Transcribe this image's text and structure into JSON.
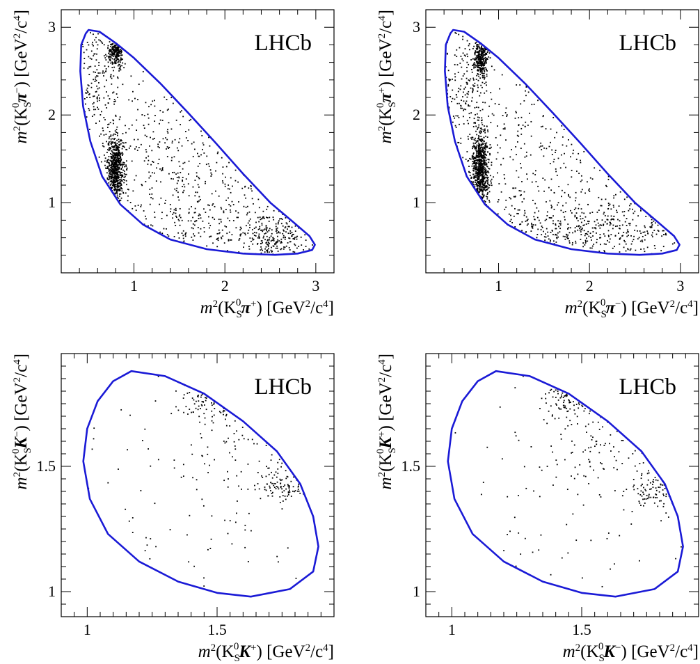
{
  "figure": {
    "boundary_color": "#1a1ad6",
    "point_color": "#000000",
    "frame_color": "#000000"
  },
  "chart_data": [
    {
      "type": "scatter",
      "id": "kpi_pp",
      "watermark": "LHCb",
      "xlabel": {
        "base": "m",
        "sup": "2",
        "open": "(K",
        "sub": "S",
        "sup0": "0",
        "particle": "π",
        "charge": "+",
        "close": ")",
        "unit": "[GeV",
        "unit_sup": "2",
        "unit_mid": "/c",
        "unit_sup2": "4",
        "unit_end": "]"
      },
      "ylabel": {
        "base": "m",
        "sup": "2",
        "open": "(K",
        "sub": "S",
        "sup0": "0",
        "particle": "π",
        "charge": "−",
        "close": ")",
        "unit": "[GeV",
        "unit_sup": "2",
        "unit_mid": "/c",
        "unit_sup2": "4",
        "unit_end": "]"
      },
      "xlim": [
        0.2,
        3.2
      ],
      "ylim": [
        0.2,
        3.2
      ],
      "xticks": [
        1,
        2,
        3
      ],
      "yticks": [
        1,
        2,
        3
      ],
      "xtick_labels": [
        "1",
        "2",
        "3"
      ],
      "ytick_labels": [
        "1",
        "2",
        "3"
      ],
      "boundary": [
        [
          0.5,
          2.97
        ],
        [
          0.62,
          2.95
        ],
        [
          0.8,
          2.82
        ],
        [
          1.0,
          2.65
        ],
        [
          1.3,
          2.35
        ],
        [
          1.6,
          2.02
        ],
        [
          1.9,
          1.68
        ],
        [
          2.2,
          1.33
        ],
        [
          2.5,
          1.0
        ],
        [
          2.75,
          0.78
        ],
        [
          2.93,
          0.62
        ],
        [
          2.99,
          0.52
        ],
        [
          2.96,
          0.46
        ],
        [
          2.8,
          0.42
        ],
        [
          2.55,
          0.405
        ],
        [
          2.2,
          0.42
        ],
        [
          1.8,
          0.47
        ],
        [
          1.4,
          0.58
        ],
        [
          1.1,
          0.75
        ],
        [
          0.85,
          0.98
        ],
        [
          0.65,
          1.3
        ],
        [
          0.52,
          1.7
        ],
        [
          0.44,
          2.1
        ],
        [
          0.41,
          2.5
        ],
        [
          0.42,
          2.8
        ],
        [
          0.47,
          2.93
        ],
        [
          0.5,
          2.97
        ]
      ],
      "clusters": [
        {
          "cx": 0.8,
          "cy": 1.4,
          "sx": 0.045,
          "sy": 0.18,
          "n": 650
        },
        {
          "cx": 0.8,
          "cy": 2.7,
          "sx": 0.04,
          "sy": 0.08,
          "n": 200
        },
        {
          "cx": 2.55,
          "cy": 0.62,
          "sx": 0.2,
          "sy": 0.14,
          "n": 220
        },
        {
          "cx": 1.8,
          "cy": 0.75,
          "sx": 0.55,
          "sy": 0.22,
          "n": 160
        },
        {
          "cx": 0.6,
          "cy": 2.4,
          "sx": 0.15,
          "sy": 0.35,
          "n": 170
        },
        {
          "cx": 1.5,
          "cy": 1.5,
          "sx": 0.6,
          "sy": 0.6,
          "n": 350
        }
      ]
    },
    {
      "type": "scatter",
      "id": "kpi_pm",
      "watermark": "LHCb",
      "xlabel": {
        "base": "m",
        "sup": "2",
        "open": "(K",
        "sub": "S",
        "sup0": "0",
        "particle": "π",
        "charge": "−",
        "close": ")",
        "unit": "[GeV",
        "unit_sup": "2",
        "unit_mid": "/c",
        "unit_sup2": "4",
        "unit_end": "]"
      },
      "ylabel": {
        "base": "m",
        "sup": "2",
        "open": "(K",
        "sub": "S",
        "sup0": "0",
        "particle": "π",
        "charge": "+",
        "close": ")",
        "unit": "[GeV",
        "unit_sup": "2",
        "unit_mid": "/c",
        "unit_sup2": "4",
        "unit_end": "]"
      },
      "xlim": [
        0.2,
        3.2
      ],
      "ylim": [
        0.2,
        3.2
      ],
      "xticks": [
        1,
        2,
        3
      ],
      "yticks": [
        1,
        2,
        3
      ],
      "xtick_labels": [
        "1",
        "2",
        "3"
      ],
      "ytick_labels": [
        "1",
        "2",
        "3"
      ],
      "boundary": [
        [
          0.5,
          2.97
        ],
        [
          0.62,
          2.95
        ],
        [
          0.8,
          2.82
        ],
        [
          1.0,
          2.65
        ],
        [
          1.3,
          2.35
        ],
        [
          1.6,
          2.02
        ],
        [
          1.9,
          1.68
        ],
        [
          2.2,
          1.33
        ],
        [
          2.5,
          1.0
        ],
        [
          2.75,
          0.78
        ],
        [
          2.93,
          0.62
        ],
        [
          2.99,
          0.52
        ],
        [
          2.96,
          0.46
        ],
        [
          2.8,
          0.42
        ],
        [
          2.55,
          0.405
        ],
        [
          2.2,
          0.42
        ],
        [
          1.8,
          0.47
        ],
        [
          1.4,
          0.58
        ],
        [
          1.1,
          0.75
        ],
        [
          0.85,
          0.98
        ],
        [
          0.65,
          1.3
        ],
        [
          0.52,
          1.7
        ],
        [
          0.44,
          2.1
        ],
        [
          0.41,
          2.5
        ],
        [
          0.42,
          2.8
        ],
        [
          0.47,
          2.93
        ],
        [
          0.5,
          2.97
        ]
      ],
      "clusters": [
        {
          "cx": 0.8,
          "cy": 1.4,
          "sx": 0.045,
          "sy": 0.22,
          "n": 700
        },
        {
          "cx": 0.8,
          "cy": 2.65,
          "sx": 0.04,
          "sy": 0.12,
          "n": 280
        },
        {
          "cx": 1.6,
          "cy": 0.65,
          "sx": 0.5,
          "sy": 0.15,
          "n": 220
        },
        {
          "cx": 2.4,
          "cy": 0.7,
          "sx": 0.35,
          "sy": 0.2,
          "n": 150
        },
        {
          "cx": 0.6,
          "cy": 2.3,
          "sx": 0.15,
          "sy": 0.4,
          "n": 180
        },
        {
          "cx": 1.5,
          "cy": 1.5,
          "sx": 0.6,
          "sy": 0.6,
          "n": 300
        }
      ]
    },
    {
      "type": "scatter",
      "id": "kk_pm",
      "watermark": "LHCb",
      "xlabel": {
        "base": "m",
        "sup": "2",
        "open": "(K",
        "sub": "S",
        "sup0": "0",
        "particle": "K",
        "charge": "+",
        "close": ")",
        "unit": "[GeV",
        "unit_sup": "2",
        "unit_mid": "/c",
        "unit_sup2": "4",
        "unit_end": "]"
      },
      "ylabel": {
        "base": "m",
        "sup": "2",
        "open": "(K",
        "sub": "S",
        "sup0": "0",
        "particle": "K",
        "charge": "−",
        "close": ")",
        "unit": "[GeV",
        "unit_sup": "2",
        "unit_mid": "/c",
        "unit_sup2": "4",
        "unit_end": "]"
      },
      "xlim": [
        0.9,
        1.95
      ],
      "ylim": [
        0.9,
        1.95
      ],
      "xticks": [
        1,
        1.5
      ],
      "yticks": [
        1,
        1.5
      ],
      "xtick_labels": [
        "1",
        "1.5"
      ],
      "ytick_labels": [
        "1",
        "1.5"
      ],
      "boundary": [
        [
          1.17,
          1.88
        ],
        [
          1.3,
          1.86
        ],
        [
          1.45,
          1.79
        ],
        [
          1.6,
          1.68
        ],
        [
          1.73,
          1.56
        ],
        [
          1.82,
          1.43
        ],
        [
          1.87,
          1.3
        ],
        [
          1.89,
          1.18
        ],
        [
          1.87,
          1.08
        ],
        [
          1.78,
          1.01
        ],
        [
          1.63,
          0.98
        ],
        [
          1.5,
          0.995
        ],
        [
          1.35,
          1.04
        ],
        [
          1.2,
          1.12
        ],
        [
          1.08,
          1.23
        ],
        [
          1.01,
          1.37
        ],
        [
          0.985,
          1.52
        ],
        [
          1.0,
          1.65
        ],
        [
          1.04,
          1.76
        ],
        [
          1.1,
          1.84
        ],
        [
          1.17,
          1.88
        ]
      ],
      "clusters": [
        {
          "cx": 1.75,
          "cy": 1.42,
          "sx": 0.05,
          "sy": 0.04,
          "n": 90
        },
        {
          "cx": 1.45,
          "cy": 1.76,
          "sx": 0.06,
          "sy": 0.04,
          "n": 60
        },
        {
          "cx": 1.6,
          "cy": 1.58,
          "sx": 0.12,
          "sy": 0.1,
          "n": 70
        },
        {
          "cx": 1.4,
          "cy": 1.4,
          "sx": 0.3,
          "sy": 0.3,
          "n": 70
        }
      ]
    },
    {
      "type": "scatter",
      "id": "kk_mp",
      "watermark": "LHCb",
      "xlabel": {
        "base": "m",
        "sup": "2",
        "open": "(K",
        "sub": "S",
        "sup0": "0",
        "particle": "K",
        "charge": "−",
        "close": ")",
        "unit": "[GeV",
        "unit_sup": "2",
        "unit_mid": "/c",
        "unit_sup2": "4",
        "unit_end": "]"
      },
      "ylabel": {
        "base": "m",
        "sup": "2",
        "open": "(K",
        "sub": "S",
        "sup0": "0",
        "particle": "K",
        "charge": "+",
        "close": ")",
        "unit": "[GeV",
        "unit_sup": "2",
        "unit_mid": "/c",
        "unit_sup2": "4",
        "unit_end": "]"
      },
      "xlim": [
        0.9,
        1.95
      ],
      "ylim": [
        0.9,
        1.95
      ],
      "xticks": [
        1,
        1.5
      ],
      "yticks": [
        1,
        1.5
      ],
      "xtick_labels": [
        "1",
        "1.5"
      ],
      "ytick_labels": [
        "1",
        "1.5"
      ],
      "boundary": [
        [
          1.17,
          1.88
        ],
        [
          1.3,
          1.86
        ],
        [
          1.45,
          1.79
        ],
        [
          1.6,
          1.68
        ],
        [
          1.73,
          1.56
        ],
        [
          1.82,
          1.43
        ],
        [
          1.87,
          1.3
        ],
        [
          1.89,
          1.18
        ],
        [
          1.87,
          1.08
        ],
        [
          1.78,
          1.01
        ],
        [
          1.63,
          0.98
        ],
        [
          1.5,
          0.995
        ],
        [
          1.35,
          1.04
        ],
        [
          1.2,
          1.12
        ],
        [
          1.08,
          1.23
        ],
        [
          1.01,
          1.37
        ],
        [
          0.985,
          1.52
        ],
        [
          1.0,
          1.65
        ],
        [
          1.04,
          1.76
        ],
        [
          1.1,
          1.84
        ],
        [
          1.17,
          1.88
        ]
      ],
      "clusters": [
        {
          "cx": 1.78,
          "cy": 1.4,
          "sx": 0.05,
          "sy": 0.04,
          "n": 80
        },
        {
          "cx": 1.45,
          "cy": 1.78,
          "sx": 0.06,
          "sy": 0.04,
          "n": 60
        },
        {
          "cx": 1.6,
          "cy": 1.6,
          "sx": 0.12,
          "sy": 0.1,
          "n": 80
        },
        {
          "cx": 1.45,
          "cy": 1.35,
          "sx": 0.3,
          "sy": 0.3,
          "n": 80
        }
      ]
    }
  ]
}
